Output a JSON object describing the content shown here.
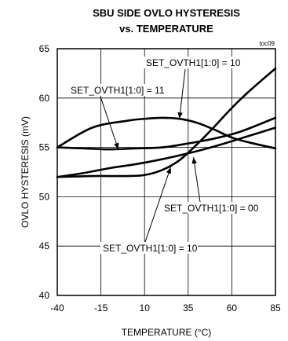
{
  "chart_data": {
    "type": "line",
    "title": "SBU SIDE OVLO HYSTERESIS",
    "subtitle": "vs. TEMPERATURE",
    "code_label": "toc09",
    "xlabel": "TEMPERATURE (°C)",
    "ylabel": "OVLO HYSTERESIS (mV)",
    "xlim": [
      -40,
      85
    ],
    "ylim": [
      40,
      65
    ],
    "x_ticks": [
      -40,
      -15,
      10,
      35,
      60,
      85
    ],
    "y_ticks": [
      40,
      45,
      50,
      55,
      60,
      65
    ],
    "grid": true,
    "series": [
      {
        "x": [
          -40,
          -20,
          0,
          10,
          20,
          30,
          40,
          50,
          60,
          70,
          85
        ],
        "y": [
          55.0,
          57.0,
          57.7,
          57.9,
          58.0,
          57.9,
          57.5,
          56.8,
          56.0,
          55.5,
          54.9
        ]
      },
      {
        "x": [
          -40,
          -25,
          -10,
          5,
          20,
          35,
          50,
          65,
          85
        ],
        "y": [
          55.0,
          54.9,
          54.8,
          54.9,
          55.0,
          55.4,
          55.9,
          56.6,
          58.0
        ]
      },
      {
        "x": [
          -40,
          -25,
          -10,
          5,
          20,
          35,
          50,
          65,
          85
        ],
        "y": [
          52.0,
          52.4,
          52.9,
          53.3,
          53.8,
          54.4,
          55.1,
          55.9,
          57.0
        ]
      },
      {
        "x": [
          -40,
          -20,
          0,
          10,
          20,
          30,
          40,
          50,
          60,
          70,
          85
        ],
        "y": [
          52.0,
          52.1,
          52.1,
          52.2,
          52.7,
          53.7,
          55.3,
          57.1,
          59.0,
          60.7,
          63.0
        ]
      }
    ],
    "annotations": [
      {
        "text": "SET_OVTH1[1:0] = 10",
        "arrow_to": [
          30,
          57.9
        ]
      },
      {
        "text": "SET_OVTH1[1:0] = 11",
        "arrow_to": [
          -5,
          54.8
        ]
      },
      {
        "text": "SET_OVTH1[1:0] = 00",
        "arrow_to": [
          38,
          54.0
        ]
      },
      {
        "text": "SET_OVTH1[1:0] = 10",
        "arrow_to": [
          25,
          53.0
        ]
      }
    ]
  }
}
